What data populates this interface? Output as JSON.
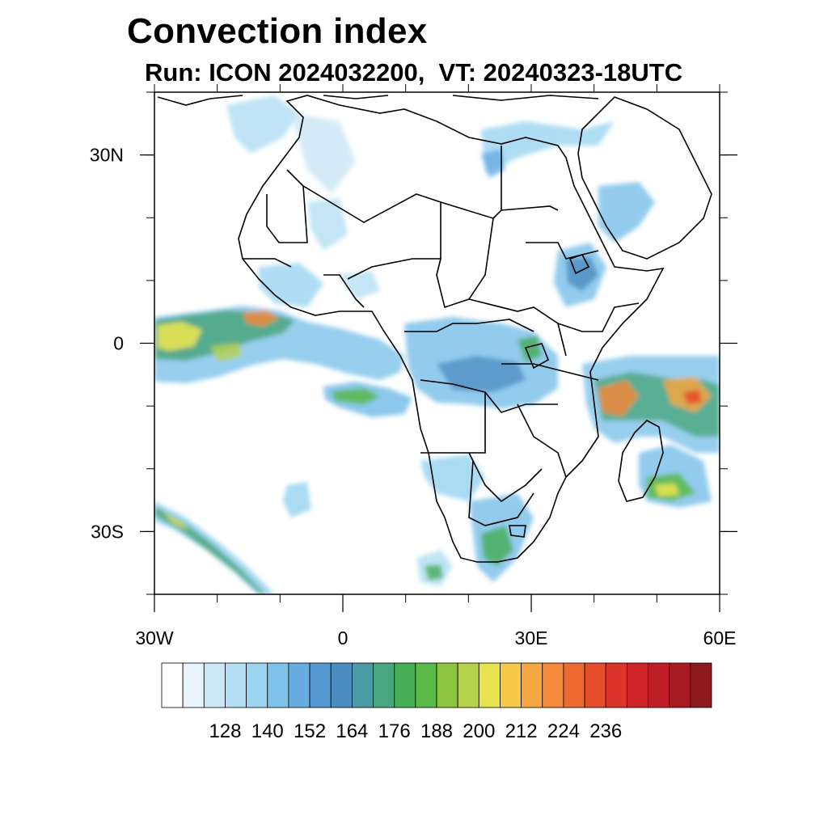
{
  "title": "Convection index",
  "subtitle": "Run: ICON 2024032200,  VT: 20240323-18UTC",
  "map": {
    "region": "Africa",
    "lon_range": [
      -30,
      60
    ],
    "lat_range": [
      -40,
      40
    ],
    "lat_ticks": [
      {
        "value": 30,
        "label": "30N"
      },
      {
        "value": 0,
        "label": "0"
      },
      {
        "value": -30,
        "label": "30S"
      }
    ],
    "lon_ticks": [
      {
        "value": -30,
        "label": "30W"
      },
      {
        "value": 0,
        "label": "0"
      },
      {
        "value": 30,
        "label": "30E"
      },
      {
        "value": 60,
        "label": "60E"
      }
    ]
  },
  "colorbar": {
    "colors": [
      "#ffffff",
      "#e8f4fb",
      "#cce8f6",
      "#b4dff4",
      "#9ad5f1",
      "#7fc2ea",
      "#68ade2",
      "#5599d2",
      "#4b8cc1",
      "#4a9aa4",
      "#4aa67c",
      "#46ad55",
      "#59ba47",
      "#8cc63f",
      "#b6d24a",
      "#e8e34f",
      "#f6c94a",
      "#f6a742",
      "#f3893a",
      "#ee6a31",
      "#e54d2c",
      "#dc3429",
      "#d12428",
      "#c01e27",
      "#a81b22",
      "#8e1a1d"
    ],
    "labels": [
      "128",
      "140",
      "152",
      "164",
      "176",
      "188",
      "200",
      "212",
      "224",
      "236"
    ]
  }
}
